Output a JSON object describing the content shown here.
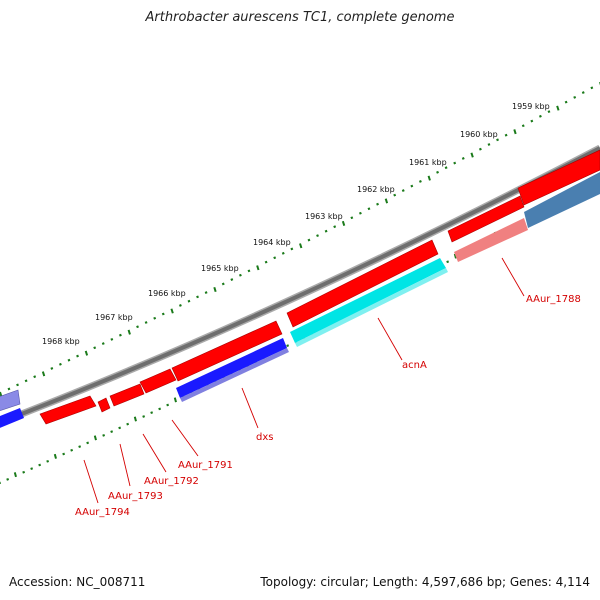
{
  "title": "Arthrobacter aurescens TC1, complete genome",
  "footer": {
    "accession": "Accession: NC_008711",
    "summary": "Topology: circular; Length: 4,597,686 bp; Genes: 4,114"
  },
  "kbp_labels": [
    "1959 kbp",
    "1960 kbp",
    "1961 kbp",
    "1962 kbp",
    "1963 kbp",
    "1964 kbp",
    "1965 kbp",
    "1966 kbp",
    "1967 kbp",
    "1968 kbp"
  ],
  "genes": [
    {
      "name": "AAur_1788",
      "label_color": "#d40000"
    },
    {
      "name": "acnA",
      "label_color": "#d40000"
    },
    {
      "name": "dxs",
      "label_color": "#d40000"
    },
    {
      "name": "AAur_1791",
      "label_color": "#d40000"
    },
    {
      "name": "AAur_1792",
      "label_color": "#d40000"
    },
    {
      "name": "AAur_1793",
      "label_color": "#d40000"
    },
    {
      "name": "AAur_1794",
      "label_color": "#d40000"
    }
  ],
  "colors": {
    "forward_cds": "#ff0000",
    "forward_cds_light": "#f08080",
    "reverse_cds": "#1a1aff",
    "reverse_cds_light": "#7070dd",
    "acnA_track": "#00e5e5",
    "steel_track": "#4a7fb0",
    "backbone": "#777777",
    "tick": "#1a7a1a"
  }
}
